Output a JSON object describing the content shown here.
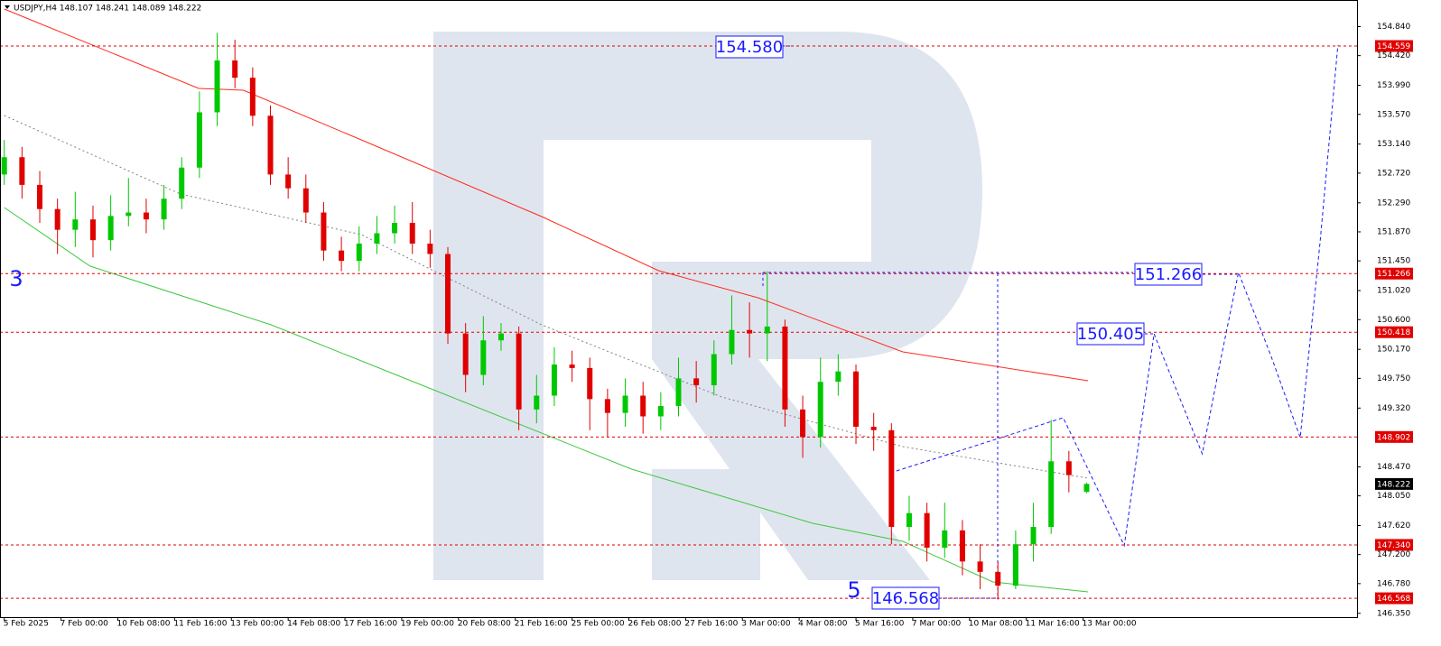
{
  "chart_data": {
    "type": "candlestick",
    "title": "USDJPY,H4  148.107 148.241 148.089 148.222",
    "x": [
      0,
      2.5,
      5,
      7.5,
      10,
      12.5,
      15,
      17.5,
      20,
      22.5,
      25,
      27.5,
      30,
      32.5,
      35,
      37.5,
      40,
      42.5,
      45,
      47.5,
      50,
      52.5,
      55,
      57.5,
      60,
      62.5,
      65,
      67.5,
      70,
      72.5,
      75,
      77.5,
      80,
      82.5,
      85,
      87.5,
      90,
      92.5,
      95,
      97.5,
      100,
      102.5,
      105,
      107.5,
      110,
      112.5,
      115,
      117.5,
      120,
      122.5,
      125,
      127.5,
      130,
      132.5,
      135,
      137.5,
      140,
      142.5,
      145,
      147.5,
      150,
      152.5
    ],
    "open": [
      152.7,
      152.95,
      152.55,
      152.2,
      151.9,
      152.05,
      151.75,
      152.1,
      152.15,
      152.05,
      152.35,
      152.8,
      153.6,
      154.35,
      154.1,
      153.55,
      152.7,
      152.5,
      152.15,
      151.6,
      151.45,
      151.7,
      151.85,
      152.0,
      151.7,
      151.55,
      150.4,
      149.8,
      150.3,
      150.4,
      149.3,
      149.5,
      149.95,
      149.9,
      149.45,
      149.25,
      149.5,
      149.2,
      149.35,
      149.75,
      149.65,
      150.1,
      150.45,
      150.4,
      150.5,
      149.3,
      148.9,
      149.7,
      149.85,
      149.05,
      149.0,
      147.6,
      147.8,
      147.3,
      147.55,
      147.1,
      146.95,
      146.75,
      147.35,
      147.6,
      148.55,
      148.107
    ],
    "high": [
      153.2,
      153.1,
      152.75,
      152.35,
      152.45,
      152.25,
      152.4,
      152.65,
      152.35,
      152.55,
      152.95,
      153.9,
      154.75,
      154.65,
      154.25,
      153.7,
      152.95,
      152.7,
      152.3,
      151.8,
      151.95,
      152.1,
      152.25,
      152.3,
      151.9,
      151.65,
      150.55,
      150.65,
      150.55,
      150.5,
      149.8,
      150.2,
      150.15,
      150.05,
      149.6,
      149.75,
      149.7,
      149.55,
      150.05,
      150.0,
      150.3,
      150.95,
      150.85,
      151.3,
      150.6,
      149.5,
      150.05,
      150.1,
      149.95,
      149.25,
      149.1,
      148.05,
      147.95,
      147.95,
      147.7,
      147.35,
      147.1,
      147.55,
      147.95,
      149.15,
      148.7,
      148.241
    ],
    "low": [
      152.55,
      152.35,
      152.0,
      151.55,
      151.65,
      151.5,
      151.6,
      151.95,
      151.85,
      151.9,
      152.2,
      152.65,
      153.4,
      153.95,
      153.4,
      152.55,
      152.35,
      152.0,
      151.45,
      151.3,
      151.3,
      151.55,
      151.7,
      151.55,
      151.35,
      150.25,
      149.55,
      149.65,
      150.15,
      149.0,
      149.1,
      149.35,
      149.7,
      149.0,
      148.9,
      149.05,
      148.95,
      149.0,
      149.2,
      149.4,
      149.5,
      149.95,
      150.05,
      150.0,
      149.05,
      148.6,
      148.75,
      149.5,
      148.8,
      148.7,
      147.35,
      147.4,
      147.1,
      147.15,
      146.9,
      146.7,
      146.55,
      146.7,
      147.1,
      147.5,
      148.1,
      148.089
    ],
    "close": [
      152.95,
      152.55,
      152.2,
      151.9,
      152.05,
      151.75,
      152.1,
      152.15,
      152.05,
      152.35,
      152.8,
      153.6,
      154.35,
      154.1,
      153.55,
      152.7,
      152.5,
      152.15,
      151.6,
      151.45,
      151.7,
      151.85,
      152.0,
      151.7,
      151.55,
      150.4,
      149.8,
      150.3,
      150.4,
      149.3,
      149.5,
      149.95,
      149.9,
      149.45,
      149.25,
      149.5,
      149.2,
      149.35,
      149.75,
      149.65,
      150.1,
      150.45,
      150.4,
      150.5,
      149.3,
      148.9,
      149.7,
      149.85,
      149.05,
      149.0,
      147.6,
      147.8,
      147.3,
      147.55,
      147.1,
      146.95,
      146.75,
      147.35,
      147.6,
      148.55,
      148.35,
      148.222
    ],
    "up_color": "#00c800",
    "down_color": "#e00000",
    "series": [
      {
        "color": "#ff2a1a",
        "style": "solid",
        "x": [
          0,
          27.4,
          33.7,
          50.3,
          75.7,
          92.2,
          106.2,
          126.6,
          152.7
        ],
        "values": [
          155.094,
          153.945,
          153.919,
          153.201,
          152.092,
          151.308,
          150.917,
          150.133,
          149.716
        ]
      },
      {
        "color": "#3cc83c",
        "style": "solid",
        "x": [
          0,
          12.1,
          37.6,
          63,
          88.4,
          113.9,
          126.6,
          139.3,
          152.7
        ],
        "values": [
          152.222,
          151.374,
          150.525,
          149.481,
          148.436,
          147.653,
          147.392,
          146.804,
          146.66
        ]
      },
      {
        "color": "#808080",
        "style": "dotted",
        "x": [
          0,
          24.8,
          50.3,
          75.7,
          101.1,
          126.6,
          152.7
        ],
        "values": [
          153.554,
          152.418,
          151.83,
          150.525,
          149.481,
          148.763,
          148.306
        ]
      },
      {
        "color": "#1a1aff",
        "style": "dashed",
        "x": [
          125.7,
          149.2,
          153.3,
          157.8,
          162,
          165.4,
          168.8,
          171.4,
          173.9,
          178.5,
          182.6,
          185.4,
          187.9
        ],
        "values": [
          148.41,
          149.18,
          148.306,
          147.33,
          150.395,
          149.52,
          148.658,
          150.029,
          151.282,
          150.068,
          148.893,
          151.726,
          154.572
        ]
      }
    ],
    "levels": [
      154.559,
      151.266,
      150.418,
      148.902,
      {
        "value": 147.34,
        "label": "147.340"
      },
      146.568
    ],
    "level_color": "#e00000",
    "current_price": 148.222,
    "boxes": [
      "154.580",
      "151.266",
      "150.405",
      "146.568"
    ],
    "wave_labels": [
      "3",
      "5"
    ],
    "xlim": [
      -0.6,
      190.6
    ],
    "ylim": [
      146.295,
      155.225
    ],
    "xticks": [
      {
        "value": 0,
        "label": "5 Feb 2025"
      },
      {
        "value": 8,
        "label": "7 Feb 00:00"
      },
      {
        "value": 16,
        "label": "10 Feb 08:00"
      },
      {
        "value": 24,
        "label": "11 Feb 16:00"
      },
      {
        "value": 32,
        "label": "13 Feb 00:00"
      },
      {
        "value": 40,
        "label": "14 Feb 08:00"
      },
      {
        "value": 48,
        "label": "17 Feb 16:00"
      },
      {
        "value": 56,
        "label": "19 Feb 00:00"
      },
      {
        "value": 64,
        "label": "20 Feb 08:00"
      },
      {
        "value": 72,
        "label": "21 Feb 16:00"
      },
      {
        "value": 80,
        "label": "25 Feb 00:00"
      },
      {
        "value": 88,
        "label": "26 Feb 08:00"
      },
      {
        "value": 96,
        "label": "27 Feb 16:00"
      },
      {
        "value": 104,
        "label": "3 Mar 00:00"
      },
      {
        "value": 112,
        "label": "4 Mar 08:00"
      },
      {
        "value": 120,
        "label": "5 Mar 16:00"
      },
      {
        "value": 128,
        "label": "7 Mar 00:00"
      },
      {
        "value": 136,
        "label": "10 Mar 08:00"
      },
      {
        "value": 144,
        "label": "11 Mar 16:00"
      },
      {
        "value": 152,
        "label": "13 Mar 00:00"
      }
    ],
    "yticks": [
      {
        "value": 154.84,
        "label": "154.840"
      },
      {
        "value": 154.42,
        "label": "154.420"
      },
      {
        "value": 153.99,
        "label": "153.990"
      },
      {
        "value": 153.57,
        "label": "153.570"
      },
      {
        "value": 153.14,
        "label": "153.140"
      },
      {
        "value": 152.72,
        "label": "152.720"
      },
      {
        "value": 152.29,
        "label": "152.290"
      },
      {
        "value": 151.87,
        "label": "151.870"
      },
      {
        "value": 151.45,
        "label": "151.450"
      },
      {
        "value": 151.02,
        "label": "151.020"
      },
      {
        "value": 150.6,
        "label": "150.600"
      },
      {
        "value": 150.17,
        "label": "150.170"
      },
      {
        "value": 149.75,
        "label": "149.750"
      },
      {
        "value": 149.32,
        "label": "149.320"
      },
      {
        "value": 148.47,
        "label": "148.470"
      },
      {
        "value": 148.05,
        "label": "148.050"
      },
      {
        "value": 147.62,
        "label": "147.620"
      },
      {
        "value": 147.2,
        "label": "147.200"
      },
      {
        "value": 146.78,
        "label": "146.780"
      },
      {
        "value": 146.35,
        "label": "146.350"
      }
    ]
  }
}
